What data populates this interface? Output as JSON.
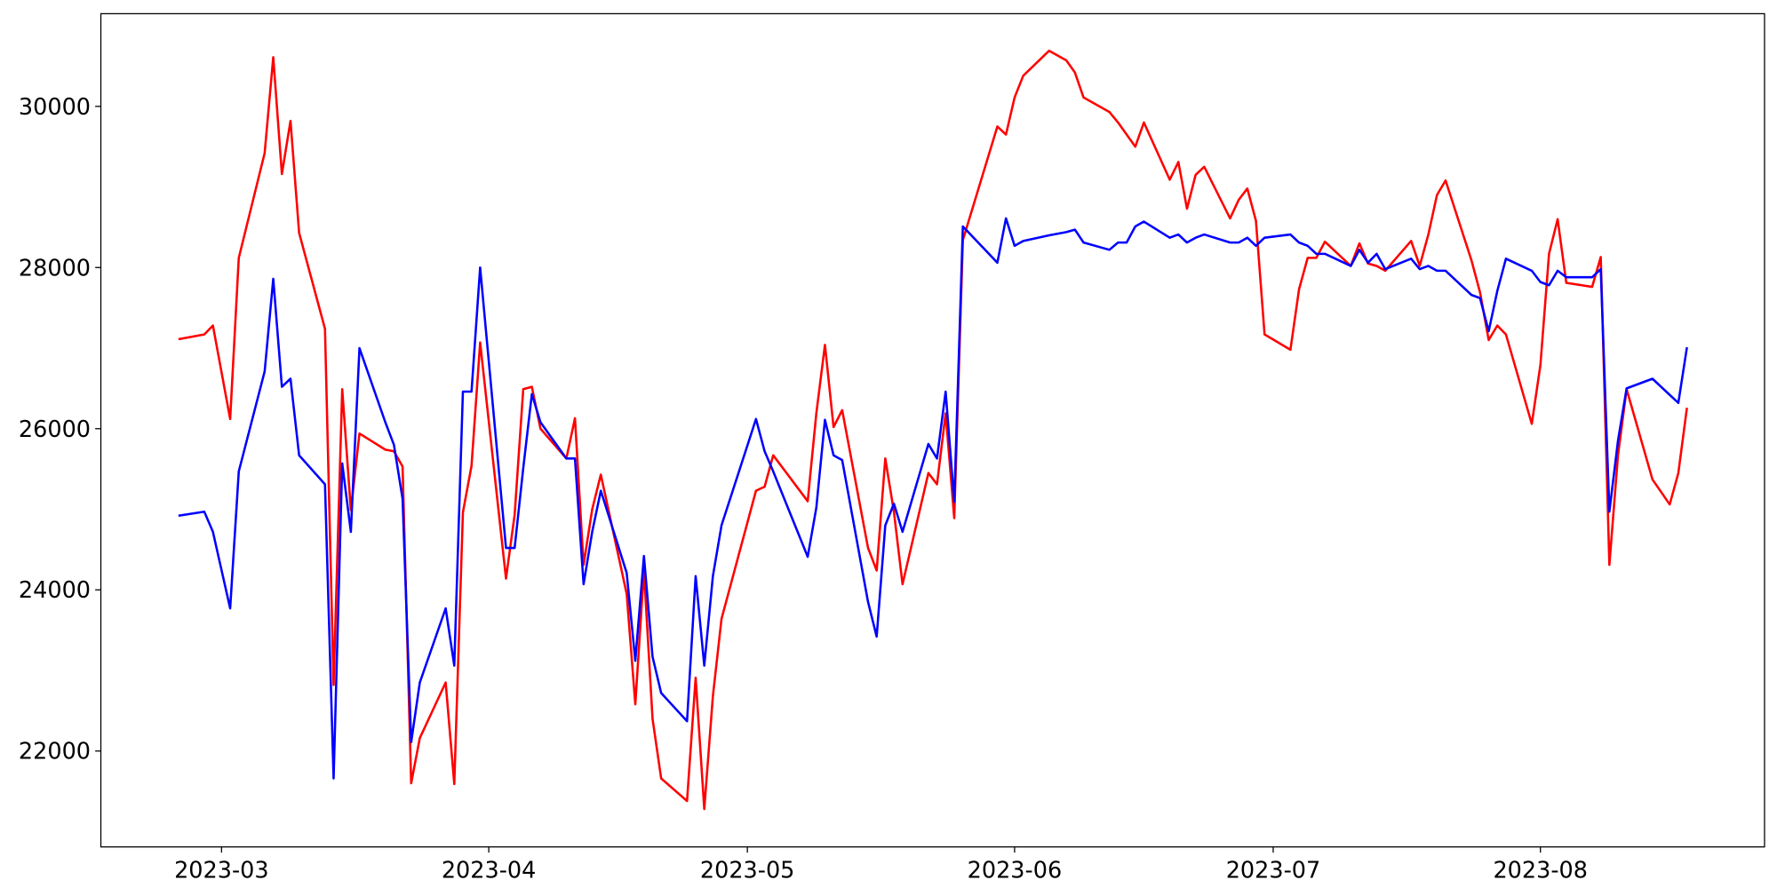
{
  "chart_data": {
    "type": "line",
    "x": [
      19412,
      19415,
      19416,
      19418,
      19419,
      19422,
      19423,
      19424,
      19425,
      19426,
      19429,
      19430,
      19431,
      19432,
      19433,
      19436,
      19437,
      19438,
      19439,
      19440,
      19443,
      19444,
      19445,
      19446,
      19447,
      19450,
      19451,
      19452,
      19453,
      19454,
      19457,
      19458,
      19459,
      19460,
      19461,
      19464,
      19465,
      19466,
      19467,
      19468,
      19471,
      19472,
      19473,
      19474,
      19475,
      19479,
      19480,
      19481,
      19485,
      19486,
      19487,
      19488,
      19489,
      19492,
      19493,
      19494,
      19495,
      19496,
      19499,
      19500,
      19501,
      19502,
      19503,
      19507,
      19508,
      19509,
      19510,
      19513,
      19515,
      19516,
      19517,
      19520,
      19521,
      19522,
      19523,
      19524,
      19527,
      19528,
      19529,
      19530,
      19531,
      19534,
      19535,
      19536,
      19537,
      19538,
      19541,
      19542,
      19543,
      19544,
      19545,
      19548,
      19549,
      19550,
      19551,
      19552,
      19555,
      19556,
      19557,
      19558,
      19559,
      19562,
      19563,
      19564,
      19565,
      19566,
      19569,
      19570,
      19571,
      19572,
      19573,
      19576,
      19577,
      19578,
      19579,
      19580,
      19583,
      19585,
      19586,
      19587
    ],
    "series": [
      {
        "color": "#ff0000",
        "values": [
          27110,
          27170,
          27280,
          26120,
          28120,
          29420,
          30610,
          29160,
          29820,
          28430,
          27240,
          22820,
          26490,
          24990,
          25940,
          25740,
          25720,
          25530,
          21600,
          22160,
          22850,
          21590,
          24960,
          25540,
          27070,
          24140,
          24930,
          26490,
          26520,
          26000,
          25630,
          26130,
          24310,
          25000,
          25430,
          23950,
          22580,
          24240,
          22400,
          21660,
          21380,
          22910,
          21280,
          22680,
          23640,
          25230,
          25280,
          25670,
          25100,
          26190,
          27040,
          26020,
          26230,
          24520,
          24240,
          25630,
          24970,
          24070,
          25450,
          25310,
          26190,
          24890,
          28340,
          29750,
          29650,
          30110,
          30380,
          30690,
          30570,
          30420,
          30110,
          29930,
          29800,
          29650,
          29500,
          29800,
          29090,
          29310,
          28730,
          29150,
          29250,
          28610,
          28840,
          28980,
          28580,
          27170,
          26980,
          27730,
          28120,
          28120,
          28320,
          28020,
          28300,
          28050,
          28020,
          27960,
          28330,
          28020,
          28410,
          28900,
          29080,
          28090,
          27690,
          27100,
          27280,
          27170,
          26060,
          26790,
          28170,
          28600,
          27810,
          27760,
          28130,
          24310,
          25670,
          26490,
          25370,
          25060,
          25450,
          26260
        ]
      },
      {
        "color": "#0000ff",
        "values": [
          24920,
          24970,
          24720,
          23770,
          25470,
          26710,
          27860,
          26520,
          26620,
          25670,
          25310,
          21660,
          25570,
          24720,
          27000,
          26080,
          25800,
          25130,
          22110,
          22850,
          23770,
          23060,
          26460,
          26460,
          28000,
          24520,
          24520,
          25510,
          26430,
          26080,
          25630,
          25630,
          24070,
          24720,
          25230,
          24210,
          23120,
          24420,
          23170,
          22720,
          22370,
          24170,
          23060,
          24170,
          24800,
          26120,
          25720,
          25470,
          24410,
          25020,
          26110,
          25670,
          25610,
          23850,
          23420,
          24800,
          25070,
          24720,
          25810,
          25630,
          26460,
          25090,
          28510,
          28060,
          28610,
          28270,
          28330,
          28400,
          28440,
          28470,
          28310,
          28220,
          28310,
          28310,
          28510,
          28570,
          28370,
          28410,
          28310,
          28370,
          28410,
          28310,
          28310,
          28370,
          28270,
          28370,
          28410,
          28310,
          28270,
          28170,
          28170,
          28020,
          28220,
          28060,
          28170,
          27980,
          28110,
          27980,
          28020,
          27960,
          27960,
          27660,
          27620,
          27210,
          27710,
          28110,
          27960,
          27820,
          27780,
          27960,
          27880,
          27880,
          27980,
          24970,
          25850,
          26500,
          26620,
          26420,
          26320,
          27010
        ]
      }
    ],
    "xlim": [
      19403,
      19596
    ],
    "xticks": [
      {
        "value": 19417,
        "label": "2023-03"
      },
      {
        "value": 19448,
        "label": "2023-04"
      },
      {
        "value": 19478,
        "label": "2023-05"
      },
      {
        "value": 19509,
        "label": "2023-06"
      },
      {
        "value": 19539,
        "label": "2023-07"
      },
      {
        "value": 19570,
        "label": "2023-08"
      }
    ],
    "ylim": [
      20810,
      31150
    ],
    "yticks": [
      22000,
      24000,
      26000,
      28000,
      30000
    ]
  }
}
